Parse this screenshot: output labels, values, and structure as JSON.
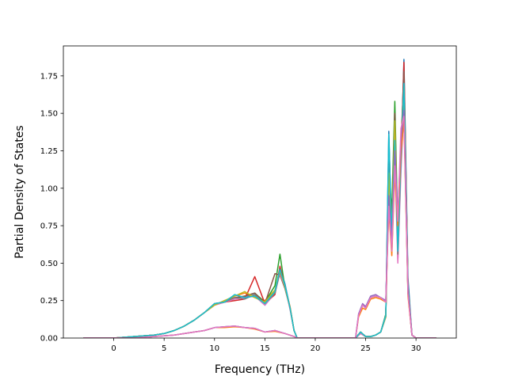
{
  "chart_data": {
    "type": "line",
    "title": "",
    "xlabel": "Frequency (THz)",
    "ylabel": "Partial Density of States",
    "xlim": [
      -5.0,
      34.0
    ],
    "ylim": [
      0.0,
      1.95
    ],
    "xticks": [
      0,
      5,
      10,
      15,
      20,
      25,
      30
    ],
    "yticks": [
      0.0,
      0.25,
      0.5,
      0.75,
      1.0,
      1.25,
      1.5,
      1.75
    ],
    "ytick_labels": [
      "0.00",
      "0.25",
      "0.50",
      "0.75",
      "1.00",
      "1.25",
      "1.50",
      "1.75"
    ],
    "grid": false,
    "legend": "none",
    "series": [
      {
        "color": "#1f77b4",
        "group": "A",
        "x": [
          -3,
          0,
          2,
          4,
          5,
          6,
          7,
          8,
          9,
          10,
          11,
          12,
          13,
          14,
          15,
          16,
          16.5,
          17,
          17.5,
          17.9,
          18.2,
          24,
          24.5,
          25,
          25.5,
          26,
          26.5,
          27,
          27.3,
          27.6,
          27.9,
          28.2,
          28.5,
          28.8,
          29.2,
          29.6,
          30,
          32
        ],
        "y": [
          0,
          0,
          0.01,
          0.02,
          0.03,
          0.05,
          0.08,
          0.12,
          0.17,
          0.23,
          0.24,
          0.27,
          0.27,
          0.29,
          0.22,
          0.3,
          0.47,
          0.36,
          0.2,
          0.05,
          0,
          0,
          0.04,
          0.01,
          0.01,
          0.02,
          0.04,
          0.15,
          1.38,
          0.65,
          1.3,
          0.55,
          1.15,
          1.86,
          0.4,
          0.02,
          0,
          0
        ]
      },
      {
        "color": "#ff7f0e",
        "group": "A",
        "x": [
          -3,
          0,
          2,
          4,
          5,
          6,
          7,
          8,
          9,
          10,
          11,
          12,
          13,
          14,
          15,
          16,
          16.5,
          17,
          17.5,
          17.9,
          18.2,
          24,
          24.5,
          25,
          25.5,
          26,
          26.5,
          27,
          27.3,
          27.6,
          27.9,
          28.2,
          28.5,
          28.8,
          29.2,
          29.6,
          30,
          32
        ],
        "y": [
          0,
          0,
          0.01,
          0.02,
          0.03,
          0.05,
          0.08,
          0.12,
          0.17,
          0.22,
          0.25,
          0.28,
          0.3,
          0.27,
          0.25,
          0.32,
          0.45,
          0.34,
          0.21,
          0.05,
          0,
          0,
          0.03,
          0.01,
          0.01,
          0.02,
          0.04,
          0.14,
          1.2,
          0.7,
          1.35,
          0.6,
          1.25,
          1.7,
          0.3,
          0.02,
          0,
          0
        ]
      },
      {
        "color": "#2ca02c",
        "group": "A",
        "x": [
          -3,
          0,
          2,
          4,
          5,
          6,
          7,
          8,
          9,
          10,
          11,
          12,
          13,
          14,
          15,
          16,
          16.5,
          17,
          17.5,
          17.9,
          18.2,
          24,
          24.5,
          25,
          25.5,
          26,
          26.5,
          27,
          27.3,
          27.6,
          27.9,
          28.2,
          28.5,
          28.8,
          29.2,
          29.6,
          30,
          32
        ],
        "y": [
          0,
          0,
          0.01,
          0.02,
          0.03,
          0.05,
          0.08,
          0.12,
          0.17,
          0.23,
          0.24,
          0.26,
          0.28,
          0.3,
          0.24,
          0.35,
          0.56,
          0.33,
          0.2,
          0.05,
          0,
          0,
          0.04,
          0.01,
          0.01,
          0.02,
          0.04,
          0.16,
          1.1,
          0.85,
          1.58,
          0.7,
          1.3,
          1.75,
          0.35,
          0.02,
          0,
          0
        ]
      },
      {
        "color": "#d62728",
        "group": "A",
        "x": [
          -3,
          0,
          2,
          4,
          5,
          6,
          7,
          8,
          9,
          10,
          11,
          12,
          13,
          14,
          15,
          16,
          16.5,
          17,
          17.5,
          17.9,
          18.2,
          24,
          24.5,
          25,
          25.5,
          26,
          26.5,
          27,
          27.3,
          27.6,
          27.9,
          28.2,
          28.5,
          28.8,
          29.2,
          29.6,
          30,
          32
        ],
        "y": [
          0,
          0,
          0.01,
          0.02,
          0.03,
          0.05,
          0.08,
          0.12,
          0.17,
          0.22,
          0.24,
          0.25,
          0.26,
          0.41,
          0.23,
          0.29,
          0.48,
          0.34,
          0.2,
          0.05,
          0,
          0,
          0.04,
          0.01,
          0.01,
          0.02,
          0.04,
          0.15,
          1.25,
          0.6,
          1.4,
          0.52,
          1.2,
          1.84,
          0.33,
          0.02,
          0,
          0
        ]
      },
      {
        "color": "#9467bd",
        "group": "A",
        "x": [
          -3,
          0,
          2,
          4,
          5,
          6,
          7,
          8,
          9,
          10,
          11,
          12,
          13,
          14,
          15,
          16,
          16.5,
          17,
          17.5,
          17.9,
          18.2,
          24,
          24.5,
          25,
          25.5,
          26,
          26.5,
          27,
          27.3,
          27.6,
          27.9,
          28.2,
          28.5,
          28.8,
          29.2,
          29.6,
          30,
          32
        ],
        "y": [
          0,
          0,
          0.01,
          0.02,
          0.03,
          0.05,
          0.08,
          0.12,
          0.17,
          0.23,
          0.24,
          0.26,
          0.27,
          0.28,
          0.22,
          0.31,
          0.44,
          0.35,
          0.19,
          0.05,
          0,
          0,
          0.03,
          0.01,
          0.01,
          0.02,
          0.04,
          0.14,
          1.15,
          0.68,
          1.28,
          0.58,
          1.18,
          1.6,
          0.31,
          0.02,
          0,
          0
        ]
      },
      {
        "color": "#8c564b",
        "group": "A",
        "x": [
          -3,
          0,
          2,
          4,
          5,
          6,
          7,
          8,
          9,
          10,
          11,
          12,
          13,
          14,
          15,
          16,
          16.5,
          17,
          17.5,
          17.9,
          18.2,
          24,
          24.5,
          25,
          25.5,
          26,
          26.5,
          27,
          27.3,
          27.6,
          27.9,
          28.2,
          28.5,
          28.8,
          29.2,
          29.6,
          30,
          32
        ],
        "y": [
          0,
          0,
          0.01,
          0.02,
          0.03,
          0.05,
          0.08,
          0.12,
          0.17,
          0.22,
          0.25,
          0.27,
          0.28,
          0.3,
          0.23,
          0.43,
          0.42,
          0.33,
          0.2,
          0.05,
          0,
          0,
          0.04,
          0.01,
          0.01,
          0.02,
          0.04,
          0.15,
          1.2,
          0.75,
          1.5,
          0.62,
          1.22,
          1.78,
          0.34,
          0.02,
          0,
          0
        ]
      },
      {
        "color": "#e377c2",
        "group": "A",
        "x": [
          -3,
          0,
          2,
          4,
          5,
          6,
          7,
          8,
          9,
          10,
          11,
          12,
          13,
          14,
          15,
          16,
          16.5,
          17,
          17.5,
          17.9,
          18.2,
          24,
          24.5,
          25,
          25.5,
          26,
          26.5,
          27,
          27.3,
          27.6,
          27.9,
          28.2,
          28.5,
          28.8,
          29.2,
          29.6,
          30,
          32
        ],
        "y": [
          0,
          0,
          0.01,
          0.02,
          0.03,
          0.05,
          0.08,
          0.12,
          0.17,
          0.22,
          0.24,
          0.26,
          0.27,
          0.28,
          0.22,
          0.3,
          0.43,
          0.34,
          0.19,
          0.05,
          0,
          0,
          0.03,
          0.01,
          0.01,
          0.02,
          0.04,
          0.14,
          1.0,
          0.55,
          1.2,
          0.5,
          1.1,
          1.55,
          0.3,
          0.02,
          0,
          0
        ]
      },
      {
        "color": "#7f7f7f",
        "group": "A",
        "x": [
          -3,
          0,
          2,
          4,
          5,
          6,
          7,
          8,
          9,
          10,
          11,
          12,
          13,
          14,
          15,
          16,
          16.5,
          17,
          17.5,
          17.9,
          18.2,
          24,
          24.5,
          25,
          25.5,
          26,
          26.5,
          27,
          27.3,
          27.6,
          27.9,
          28.2,
          28.5,
          28.8,
          29.2,
          29.6,
          30,
          32
        ],
        "y": [
          0,
          0,
          0.01,
          0.02,
          0.03,
          0.05,
          0.08,
          0.12,
          0.17,
          0.23,
          0.24,
          0.27,
          0.26,
          0.29,
          0.23,
          0.3,
          0.44,
          0.35,
          0.2,
          0.05,
          0,
          0,
          0.04,
          0.01,
          0.01,
          0.02,
          0.04,
          0.15,
          1.15,
          0.65,
          1.3,
          0.56,
          1.17,
          1.65,
          0.32,
          0.02,
          0,
          0
        ]
      },
      {
        "color": "#bcbd22",
        "group": "A",
        "x": [
          -3,
          0,
          2,
          4,
          5,
          6,
          7,
          8,
          9,
          10,
          11,
          12,
          13,
          14,
          15,
          16,
          16.5,
          17,
          17.5,
          17.9,
          18.2,
          24,
          24.5,
          25,
          25.5,
          26,
          26.5,
          27,
          27.3,
          27.6,
          27.9,
          28.2,
          28.5,
          28.8,
          29.2,
          29.6,
          30,
          32
        ],
        "y": [
          0,
          0,
          0.01,
          0.02,
          0.03,
          0.05,
          0.08,
          0.12,
          0.17,
          0.22,
          0.25,
          0.28,
          0.31,
          0.27,
          0.24,
          0.32,
          0.45,
          0.34,
          0.2,
          0.05,
          0,
          0,
          0.04,
          0.01,
          0.01,
          0.02,
          0.04,
          0.14,
          1.1,
          0.7,
          1.45,
          0.6,
          1.25,
          1.68,
          0.32,
          0.02,
          0,
          0
        ]
      },
      {
        "color": "#17becf",
        "group": "A",
        "x": [
          -3,
          0,
          2,
          4,
          5,
          6,
          7,
          8,
          9,
          10,
          11,
          12,
          13,
          14,
          15,
          16,
          16.5,
          17,
          17.5,
          17.9,
          18.2,
          24,
          24.5,
          25,
          25.5,
          26,
          26.5,
          27,
          27.3,
          27.6,
          27.9,
          28.2,
          28.5,
          28.8,
          29.2,
          29.6,
          30,
          32
        ],
        "y": [
          0,
          0,
          0.01,
          0.02,
          0.03,
          0.05,
          0.08,
          0.12,
          0.17,
          0.23,
          0.24,
          0.29,
          0.27,
          0.28,
          0.23,
          0.31,
          0.46,
          0.35,
          0.2,
          0.05,
          0,
          0,
          0.04,
          0.01,
          0.01,
          0.02,
          0.04,
          0.15,
          1.36,
          0.68,
          1.32,
          0.58,
          1.2,
          1.7,
          0.33,
          0.02,
          0,
          0
        ]
      },
      {
        "color": "#1f77b4",
        "group": "B",
        "x": [
          -3,
          0,
          2,
          4,
          6,
          8,
          9,
          10,
          11,
          12,
          13,
          14,
          15,
          16,
          17,
          17.9,
          18.2,
          24,
          24.3,
          24.7,
          25,
          25.5,
          26,
          26.5,
          27,
          27.3,
          27.6,
          27.9,
          28.2,
          28.5,
          28.8,
          29.2,
          29.6,
          30,
          32
        ],
        "y": [
          0,
          0,
          0,
          0.01,
          0.02,
          0.04,
          0.05,
          0.07,
          0.075,
          0.08,
          0.07,
          0.065,
          0.04,
          0.05,
          0.03,
          0.01,
          0,
          0,
          0.15,
          0.22,
          0.2,
          0.27,
          0.28,
          0.27,
          0.25,
          0.9,
          0.6,
          1.2,
          0.8,
          1.3,
          1.5,
          0.3,
          0.02,
          0,
          0
        ]
      },
      {
        "color": "#ff7f0e",
        "group": "B",
        "x": [
          -3,
          0,
          2,
          4,
          6,
          8,
          9,
          10,
          11,
          12,
          13,
          14,
          15,
          16,
          17,
          17.9,
          18.2,
          24,
          24.3,
          24.7,
          25,
          25.5,
          26,
          26.5,
          27,
          27.3,
          27.6,
          27.9,
          28.2,
          28.5,
          28.8,
          29.2,
          29.6,
          30,
          32
        ],
        "y": [
          0,
          0,
          0,
          0.01,
          0.02,
          0.04,
          0.05,
          0.07,
          0.07,
          0.075,
          0.07,
          0.06,
          0.04,
          0.045,
          0.03,
          0.01,
          0,
          0,
          0.14,
          0.2,
          0.19,
          0.26,
          0.27,
          0.26,
          0.24,
          0.85,
          0.55,
          1.1,
          0.75,
          1.25,
          1.45,
          0.28,
          0.02,
          0,
          0
        ]
      },
      {
        "color": "#9467bd",
        "group": "B",
        "x": [
          -3,
          0,
          2,
          4,
          6,
          8,
          9,
          10,
          11,
          12,
          13,
          14,
          15,
          16,
          17,
          17.9,
          18.2,
          24,
          24.3,
          24.7,
          25,
          25.5,
          26,
          26.5,
          27,
          27.3,
          27.6,
          27.9,
          28.2,
          28.5,
          28.8,
          29.2,
          29.6,
          30,
          32
        ],
        "y": [
          0,
          0,
          0,
          0.01,
          0.02,
          0.04,
          0.05,
          0.07,
          0.075,
          0.08,
          0.07,
          0.065,
          0.04,
          0.05,
          0.03,
          0.01,
          0,
          0,
          0.16,
          0.23,
          0.21,
          0.28,
          0.29,
          0.27,
          0.25,
          0.95,
          0.62,
          1.25,
          0.82,
          1.32,
          1.52,
          0.32,
          0.02,
          0,
          0
        ]
      },
      {
        "color": "#e377c2",
        "group": "B",
        "x": [
          -3,
          0,
          2,
          4,
          6,
          8,
          9,
          10,
          11,
          12,
          13,
          14,
          15,
          16,
          17,
          17.9,
          18.2,
          24,
          24.3,
          24.7,
          25,
          25.5,
          26,
          26.5,
          27,
          27.3,
          27.6,
          27.9,
          28.2,
          28.5,
          28.8,
          29.2,
          29.6,
          30,
          32
        ],
        "y": [
          0,
          0,
          0,
          0.01,
          0.02,
          0.04,
          0.05,
          0.07,
          0.075,
          0.08,
          0.07,
          0.065,
          0.04,
          0.05,
          0.03,
          0.01,
          0,
          0,
          0.15,
          0.22,
          0.2,
          0.27,
          0.28,
          0.27,
          0.24,
          0.88,
          0.58,
          1.15,
          0.78,
          1.4,
          1.48,
          0.3,
          0.02,
          0,
          0
        ]
      }
    ]
  }
}
